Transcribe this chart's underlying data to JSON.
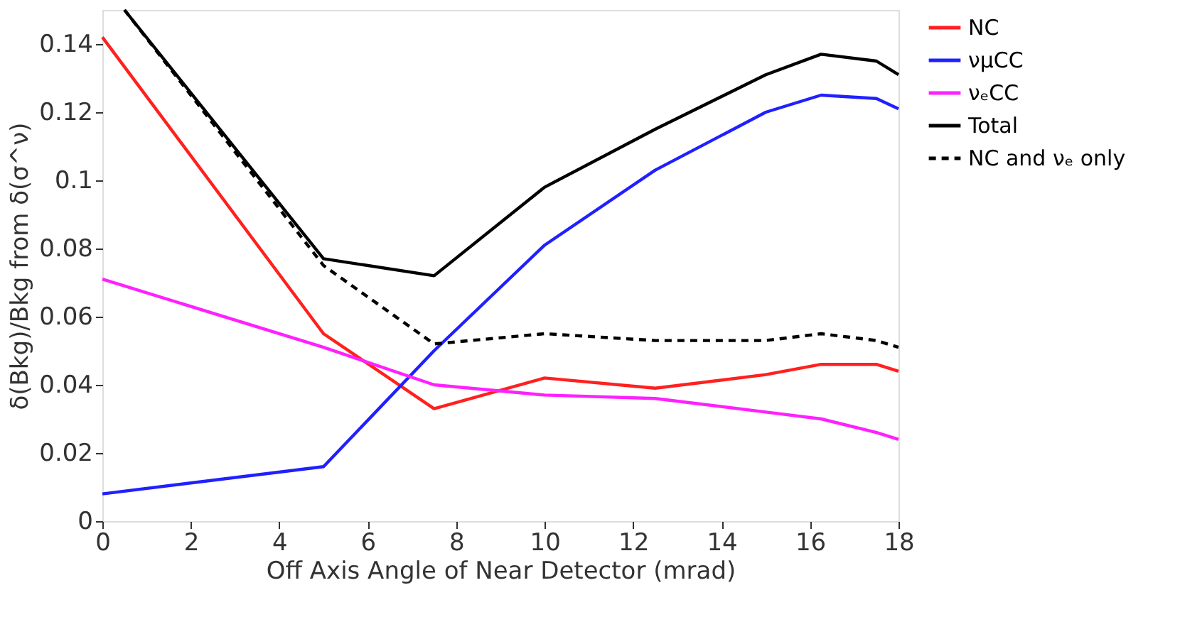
{
  "chart_data": {
    "type": "line",
    "xlabel": "Off Axis Angle of Near Detector (mrad)",
    "ylabel": "δ(Bkg)/Bkg from δ(σ^ν)",
    "x": [
      0,
      5,
      7.5,
      10,
      12.5,
      15,
      16.25,
      17.5,
      18
    ],
    "series": [
      {
        "name": "NC",
        "color": "#ff2020",
        "line_style": "solid",
        "values": [
          0.142,
          0.055,
          0.033,
          0.042,
          0.039,
          0.043,
          0.046,
          0.046,
          0.044
        ]
      },
      {
        "name": "νμCC",
        "color": "#2020ff",
        "line_style": "solid",
        "values": [
          0.008,
          0.016,
          0.05,
          0.081,
          0.103,
          0.12,
          0.125,
          0.124,
          0.121
        ]
      },
      {
        "name": "νₑCC",
        "color": "#ff20ff",
        "line_style": "solid",
        "values": [
          0.071,
          0.051,
          0.04,
          0.037,
          0.036,
          0.032,
          0.03,
          0.026,
          0.024
        ]
      },
      {
        "name": "Total",
        "color": "#000000",
        "line_style": "solid",
        "x": [
          0.5,
          5,
          7.5,
          10,
          12.5,
          15,
          16.25,
          17.5,
          18
        ],
        "values": [
          0.15,
          0.077,
          0.072,
          0.098,
          0.115,
          0.131,
          0.137,
          0.135,
          0.131
        ]
      },
      {
        "name": "NC and νₑ only",
        "color": "#000000",
        "line_style": "dashed",
        "x": [
          0.5,
          5,
          7.5,
          10,
          12.5,
          15,
          16.25,
          17.5,
          18
        ],
        "values": [
          0.15,
          0.075,
          0.052,
          0.055,
          0.053,
          0.053,
          0.055,
          0.053,
          0.051
        ]
      }
    ],
    "xlim": [
      0,
      18
    ],
    "xticks": [
      0,
      2,
      4,
      6,
      8,
      10,
      12,
      14,
      16,
      18
    ],
    "ylim": [
      0,
      0.15
    ],
    "yticks": [
      0,
      0.02,
      0.04,
      0.06,
      0.08,
      0.1,
      0.12,
      0.14
    ],
    "grid": false,
    "marker": "none",
    "legend": "right"
  }
}
